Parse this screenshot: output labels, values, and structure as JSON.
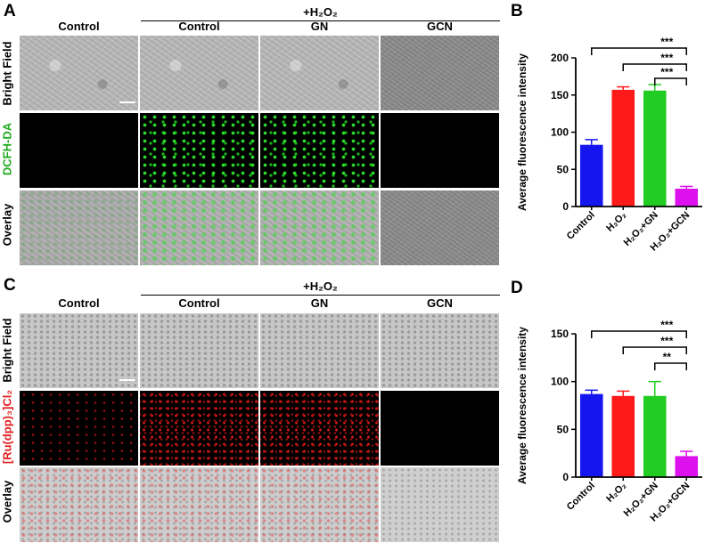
{
  "panels": {
    "A": {
      "letter": "A",
      "group_label": "+H₂O₂",
      "columns": [
        "Control",
        "Control",
        "GN",
        "GCN"
      ],
      "rows": [
        {
          "label": "Bright Field",
          "color": "#000000"
        },
        {
          "label": "DCFH-DA",
          "color": "#1faa1f"
        },
        {
          "label": "Overlay",
          "color": "#000000"
        }
      ]
    },
    "C": {
      "letter": "C",
      "group_label": "+H₂O₂",
      "columns": [
        "Control",
        "Control",
        "GN",
        "GCN"
      ],
      "rows": [
        {
          "label": "Bright Field",
          "color": "#000000"
        },
        {
          "label": "[Ru(dpp)₃]Cl₂",
          "color": "#e02020"
        },
        {
          "label": "Overlay",
          "color": "#000000"
        }
      ]
    },
    "B": {
      "letter": "B"
    },
    "D": {
      "letter": "D"
    }
  },
  "chart_data": [
    {
      "id": "B",
      "type": "bar",
      "categories": [
        "Control",
        "H₂O₂",
        "H₂O₂+GN",
        "H₂O₂+GCN"
      ],
      "values": [
        83,
        157,
        156,
        24
      ],
      "errors": [
        7,
        4,
        8,
        3
      ],
      "colors": [
        "#1515f0",
        "#ff1a1a",
        "#22cc22",
        "#dd11ee"
      ],
      "ylabel": "Average fluorescence intensity",
      "ylim": [
        0,
        200
      ],
      "yticks": [
        0,
        50,
        100,
        150,
        200
      ],
      "significance": [
        {
          "from": 0,
          "to": 3,
          "label": "***"
        },
        {
          "from": 1,
          "to": 3,
          "label": "***"
        },
        {
          "from": 2,
          "to": 3,
          "label": "***"
        }
      ]
    },
    {
      "id": "D",
      "type": "bar",
      "categories": [
        "Control",
        "H₂O₂",
        "H₂O₂+GN",
        "H₂O₂+GCN"
      ],
      "values": [
        87,
        85,
        85,
        22
      ],
      "errors": [
        4,
        5,
        15,
        5
      ],
      "colors": [
        "#1515f0",
        "#ff1a1a",
        "#22cc22",
        "#dd11ee"
      ],
      "ylabel": "Average fluorescence intensity",
      "ylim": [
        0,
        150
      ],
      "yticks": [
        0,
        50,
        100,
        150
      ],
      "significance": [
        {
          "from": 0,
          "to": 3,
          "label": "***"
        },
        {
          "from": 1,
          "to": 3,
          "label": "***"
        },
        {
          "from": 2,
          "to": 3,
          "label": "**"
        }
      ]
    }
  ]
}
